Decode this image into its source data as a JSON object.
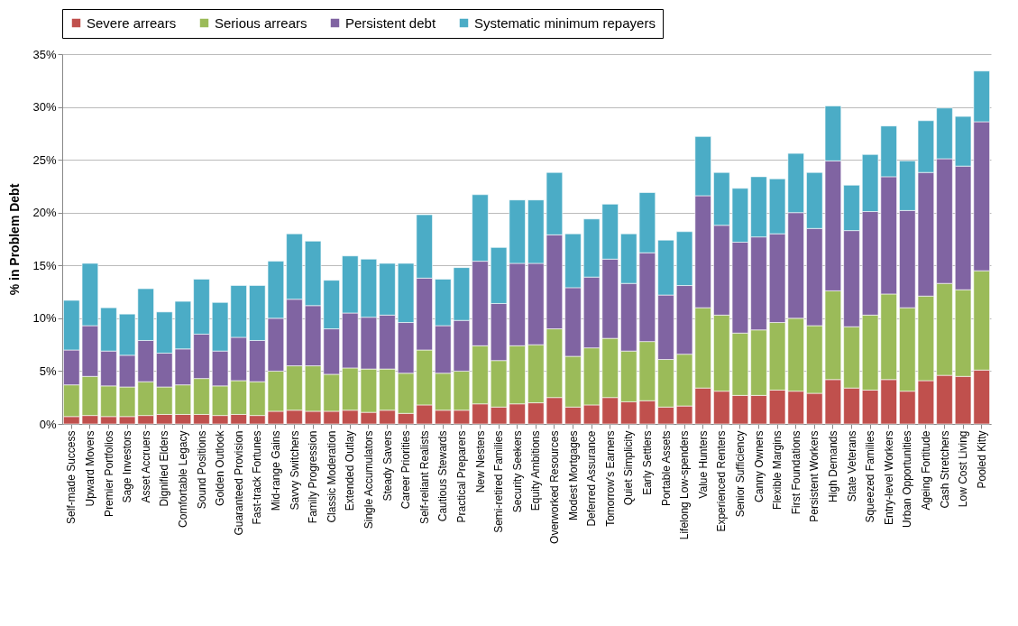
{
  "chart_data": {
    "type": "bar",
    "stacked": true,
    "ylabel": "% in Problem Debt",
    "legend": "top",
    "grid": "y",
    "categories": [
      "Self-made Success",
      "Upward Movers",
      "Premier Portfolios",
      "Sage Investors",
      "Asset Accruers",
      "Dignified Elders",
      "Comfortable Legacy",
      "Sound Positions",
      "Golden Outlook",
      "Guaranteed Provision",
      "Fast-track Fortunes",
      "Mid-range Gains",
      "Savvy Switchers",
      "Family Progression",
      "Classic Moderation",
      "Extended Outlay",
      "Single Accumulators",
      "Steady Savers",
      "Career Priorities",
      "Self-reliant Realists",
      "Cautious Stewards",
      "Practical Preparers",
      "New Nesters",
      "Semi-retired Families",
      "Security Seekers",
      "Equity Ambitions",
      "Overworked Resources",
      "Modest Mortgages",
      "Deferred Assurance",
      "Tomorrow's Earners",
      "Quiet Simplicity",
      "Early Settlers",
      "Portable Assets",
      "Lifelong Low-spenders",
      "Value Hunters",
      "Experienced Renters",
      "Senior Sufficiency",
      "Canny Owners",
      "Flexible Margins",
      "First Foundations",
      "Persistent Workers",
      "High Demands",
      "State Veterans",
      "Squeezed Families",
      "Entry-level Workers",
      "Urban Opportunities",
      "Ageing Fortitude",
      "Cash Stretchers",
      "Low Cost Living",
      "Pooled Kitty"
    ],
    "ylim": [
      0,
      35
    ],
    "yticks": [
      {
        "value": 0,
        "label": "0%"
      },
      {
        "value": 5,
        "label": "5%"
      },
      {
        "value": 10,
        "label": "10%"
      },
      {
        "value": 15,
        "label": "15%"
      },
      {
        "value": 20,
        "label": "20%"
      },
      {
        "value": 25,
        "label": "25%"
      },
      {
        "value": 30,
        "label": "30%"
      },
      {
        "value": 35,
        "label": "35%"
      }
    ],
    "series": [
      {
        "name": "Severe arrears",
        "color": "#c0504d",
        "values": [
          0.7,
          0.8,
          0.7,
          0.7,
          0.8,
          0.9,
          0.9,
          0.9,
          0.8,
          0.9,
          0.8,
          1.2,
          1.3,
          1.2,
          1.2,
          1.3,
          1.1,
          1.3,
          1.0,
          1.8,
          1.3,
          1.3,
          1.9,
          1.6,
          1.9,
          2.0,
          2.5,
          1.6,
          1.8,
          2.5,
          2.1,
          2.2,
          1.6,
          1.7,
          3.4,
          3.1,
          2.7,
          2.7,
          3.2,
          3.1,
          2.9,
          4.2,
          3.4,
          3.2,
          4.2,
          3.1,
          4.1,
          4.6,
          4.5,
          5.1
        ]
      },
      {
        "name": "Serious arrears",
        "color": "#9bbb59",
        "values": [
          3.0,
          3.7,
          2.9,
          2.8,
          3.2,
          2.6,
          2.8,
          3.4,
          2.8,
          3.2,
          3.2,
          3.8,
          4.2,
          4.3,
          3.5,
          4.0,
          4.1,
          3.9,
          3.8,
          5.2,
          3.5,
          3.7,
          5.5,
          4.4,
          5.5,
          5.5,
          6.5,
          4.8,
          5.4,
          5.6,
          4.8,
          5.6,
          4.5,
          4.9,
          7.6,
          7.2,
          5.9,
          6.2,
          6.4,
          6.9,
          6.4,
          8.4,
          5.8,
          7.1,
          8.1,
          7.9,
          8.0,
          8.7,
          8.2,
          9.4
        ]
      },
      {
        "name": "Persistent debt",
        "color": "#8064a2",
        "values": [
          3.3,
          4.8,
          3.3,
          3.0,
          3.9,
          3.2,
          3.4,
          4.2,
          3.3,
          4.1,
          3.9,
          5.0,
          6.3,
          5.7,
          4.3,
          5.2,
          4.9,
          5.1,
          4.8,
          6.8,
          4.5,
          4.8,
          8.0,
          5.4,
          7.8,
          7.7,
          8.9,
          6.5,
          6.7,
          7.5,
          6.4,
          8.4,
          6.1,
          6.5,
          10.6,
          8.5,
          8.6,
          8.8,
          8.4,
          10.0,
          9.2,
          12.3,
          9.1,
          9.8,
          11.1,
          9.2,
          11.7,
          11.8,
          11.7,
          14.1
        ]
      },
      {
        "name": "Systematic minimum repayers",
        "color": "#4bacc6",
        "values": [
          4.7,
          5.9,
          4.1,
          3.9,
          4.9,
          3.9,
          4.5,
          5.2,
          4.6,
          4.9,
          5.2,
          5.4,
          6.2,
          6.1,
          4.6,
          5.4,
          5.5,
          4.9,
          5.6,
          6.0,
          4.4,
          5.0,
          6.3,
          5.3,
          6.0,
          6.0,
          5.9,
          5.1,
          5.5,
          5.2,
          4.7,
          5.7,
          5.2,
          5.1,
          5.6,
          5.0,
          5.1,
          5.7,
          5.2,
          5.6,
          5.3,
          5.2,
          4.3,
          5.4,
          4.8,
          4.7,
          4.9,
          4.8,
          4.7,
          4.8
        ]
      }
    ]
  }
}
